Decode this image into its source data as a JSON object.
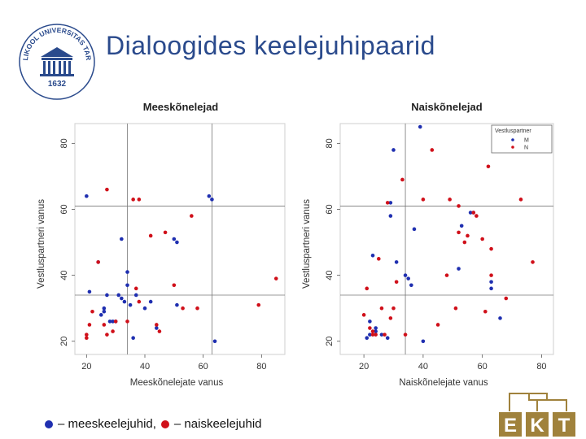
{
  "slide": {
    "title": "Dialoogides keelejuhipaarid",
    "legend": {
      "blue_text": "– meeskeelejuhid,",
      "red_text": "– naiskeelejuhid",
      "blue_color": "#1f2fb0",
      "red_color": "#d0101a"
    },
    "logo": {
      "arc_text": "TARTU ÜLIKOOL UNIVERSITAS TARTUENSIS",
      "year": "1632",
      "color": "#2a4a8c"
    },
    "ekt_logo": {
      "letters": [
        "E",
        "K",
        "T"
      ],
      "color": "#a0823c"
    }
  },
  "chart_data": [
    {
      "type": "scatter",
      "title": "Meeskõnelejad",
      "xlabel": "Meeskõnelejate vanus",
      "ylabel": "Vestluspartneri vanus",
      "xlim": [
        16,
        88
      ],
      "ylim": [
        16,
        86
      ],
      "xticks": [
        20,
        40,
        60,
        80
      ],
      "yticks": [
        20,
        40,
        60,
        80
      ],
      "reference_lines": {
        "x": [
          34,
          63
        ],
        "y": [
          34,
          61
        ]
      },
      "series": [
        {
          "color": "#1f2fb0",
          "points": [
            [
              20,
              64
            ],
            [
              21,
              35
            ],
            [
              24,
              44
            ],
            [
              25,
              28
            ],
            [
              26,
              29
            ],
            [
              26,
              30
            ],
            [
              27,
              34
            ],
            [
              28,
              26
            ],
            [
              29,
              26
            ],
            [
              30,
              26
            ],
            [
              31,
              34
            ],
            [
              32,
              33
            ],
            [
              32,
              51
            ],
            [
              33,
              32
            ],
            [
              34,
              41
            ],
            [
              34,
              37
            ],
            [
              35,
              31
            ],
            [
              36,
              21
            ],
            [
              37,
              34
            ],
            [
              40,
              30
            ],
            [
              42,
              32
            ],
            [
              44,
              24
            ],
            [
              50,
              51
            ],
            [
              51,
              50
            ],
            [
              51,
              31
            ],
            [
              62,
              64
            ],
            [
              63,
              63
            ],
            [
              64,
              20
            ]
          ]
        },
        {
          "color": "#d0101a",
          "points": [
            [
              20,
              21
            ],
            [
              20,
              22
            ],
            [
              21,
              25
            ],
            [
              22,
              29
            ],
            [
              24,
              44
            ],
            [
              26,
              25
            ],
            [
              27,
              66
            ],
            [
              27,
              22
            ],
            [
              29,
              23
            ],
            [
              30,
              26
            ],
            [
              34,
              26
            ],
            [
              36,
              63
            ],
            [
              37,
              36
            ],
            [
              38,
              63
            ],
            [
              38,
              32
            ],
            [
              42,
              52
            ],
            [
              44,
              25
            ],
            [
              45,
              23
            ],
            [
              47,
              53
            ],
            [
              50,
              37
            ],
            [
              53,
              30
            ],
            [
              56,
              58
            ],
            [
              58,
              30
            ],
            [
              79,
              31
            ],
            [
              85,
              39
            ]
          ]
        }
      ]
    },
    {
      "type": "scatter",
      "title": "Naiskõnelejad",
      "xlabel": "Naiskõnelejate vanus",
      "ylabel": "Vestluspartneri vanus",
      "xlim": [
        12,
        84
      ],
      "ylim": [
        16,
        86
      ],
      "xticks": [
        20,
        40,
        60,
        80
      ],
      "yticks": [
        20,
        40,
        60,
        80
      ],
      "reference_lines": {
        "x": [
          34
        ],
        "y": [
          34,
          61
        ]
      },
      "legend": {
        "title": "Vestluspartner",
        "entries": [
          "M",
          "N"
        ],
        "placement": "top-right"
      },
      "series": [
        {
          "name": "M",
          "color": "#1f2fb0",
          "points": [
            [
              21,
              21
            ],
            [
              22,
              22
            ],
            [
              22,
              26
            ],
            [
              23,
              46
            ],
            [
              24,
              24
            ],
            [
              24,
              23
            ],
            [
              26,
              22
            ],
            [
              28,
              21
            ],
            [
              29,
              62
            ],
            [
              29,
              58
            ],
            [
              30,
              78
            ],
            [
              31,
              44
            ],
            [
              34,
              40
            ],
            [
              35,
              39
            ],
            [
              36,
              37
            ],
            [
              37,
              54
            ],
            [
              39,
              85
            ],
            [
              40,
              20
            ],
            [
              52,
              42
            ],
            [
              53,
              55
            ],
            [
              56,
              59
            ],
            [
              57,
              59
            ],
            [
              63,
              36
            ],
            [
              63,
              38
            ],
            [
              66,
              27
            ]
          ]
        },
        {
          "name": "N",
          "color": "#d0101a",
          "points": [
            [
              20,
              28
            ],
            [
              21,
              36
            ],
            [
              22,
              24
            ],
            [
              23,
              23
            ],
            [
              23,
              22
            ],
            [
              24,
              22
            ],
            [
              25,
              45
            ],
            [
              26,
              30
            ],
            [
              27,
              22
            ],
            [
              28,
              62
            ],
            [
              29,
              27
            ],
            [
              30,
              30
            ],
            [
              31,
              38
            ],
            [
              33,
              69
            ],
            [
              34,
              22
            ],
            [
              40,
              63
            ],
            [
              43,
              78
            ],
            [
              45,
              25
            ],
            [
              48,
              40
            ],
            [
              49,
              63
            ],
            [
              51,
              30
            ],
            [
              52,
              61
            ],
            [
              52,
              53
            ],
            [
              54,
              50
            ],
            [
              55,
              52
            ],
            [
              57,
              59
            ],
            [
              58,
              58
            ],
            [
              60,
              51
            ],
            [
              61,
              29
            ],
            [
              62,
              73
            ],
            [
              63,
              48
            ],
            [
              63,
              40
            ],
            [
              68,
              33
            ],
            [
              73,
              63
            ],
            [
              77,
              44
            ]
          ]
        }
      ]
    }
  ]
}
